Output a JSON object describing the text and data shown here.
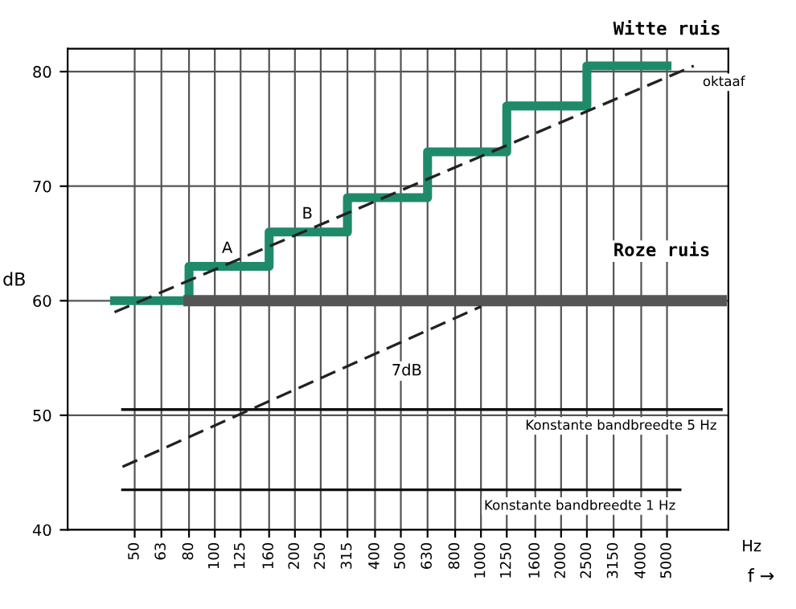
{
  "chart_data": {
    "type": "line",
    "xlabel": "f →",
    "ylabel": "dB",
    "log": "x",
    "xlim": [
      28,
      8500
    ],
    "ylim": [
      40,
      82
    ],
    "xticks": [
      50,
      63,
      80,
      100,
      125,
      160,
      200,
      250,
      315,
      400,
      500,
      630,
      800,
      1000,
      1250,
      1600,
      2000,
      2500,
      3150,
      4000,
      5000
    ],
    "legend": false,
    "yticks": [
      40,
      50,
      60,
      70,
      80
    ],
    "grid": true,
    "series": [
      {
        "name": "Witte ruis",
        "type": "step",
        "color": "#1f8a6a",
        "x": [
          42,
          80,
          160,
          315,
          630,
          1250,
          2500,
          5000
        ],
        "values": [
          60,
          63,
          66,
          69,
          73,
          77,
          80.5,
          80.5
        ]
      },
      {
        "name": "Roze ruis",
        "type": "line",
        "color": "#555555",
        "x": [
          80,
          8000
        ],
        "values": [
          60,
          60
        ]
      },
      {
        "name": "oktaaf",
        "type": "line",
        "line_style": "dashed",
        "color": "#222222",
        "x": [
          42,
          6300
        ],
        "values": [
          59,
          80.5
        ]
      },
      {
        "type": "line",
        "line_style": "dashed",
        "color": "#222222",
        "x": [
          45,
          1000
        ],
        "values": [
          45.5,
          59.5
        ]
      },
      {
        "name": "Konstante bandbreedte 5 Hz",
        "type": "line",
        "color": "#111111",
        "x": [
          45,
          8000
        ],
        "values": [
          50.5,
          50.5
        ]
      },
      {
        "name": "Konstante bandbreedte 1 Hz",
        "type": "line",
        "color": "#111111",
        "x": [
          45,
          5600
        ],
        "values": [
          43.5,
          43.5
        ]
      }
    ],
    "annotations": [
      {
        "text": "A",
        "x": 125,
        "y": 63.5
      },
      {
        "text": "B",
        "x": 250,
        "y": 66.5
      },
      "7dB",
      "Hz"
    ]
  }
}
